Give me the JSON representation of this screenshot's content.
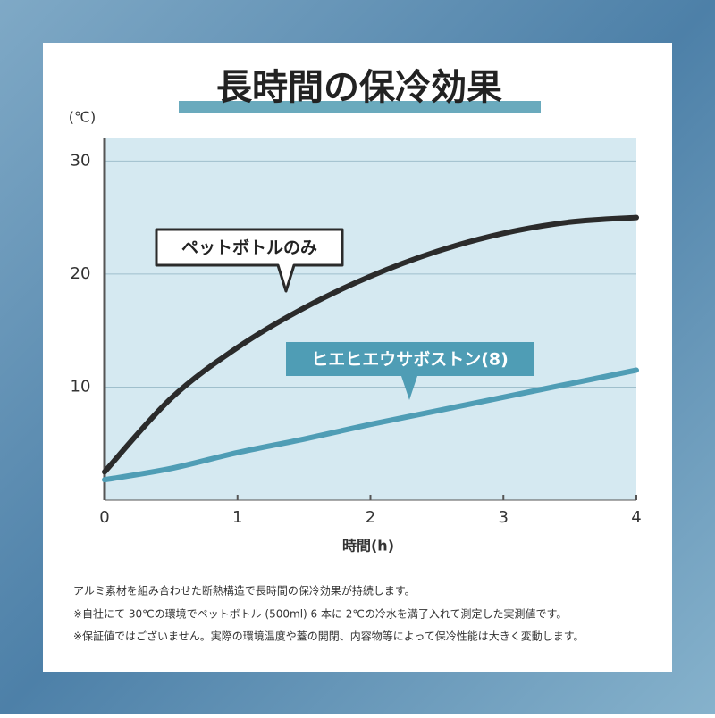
{
  "chart_data": {
    "type": "line",
    "title": "長時間の保冷効果",
    "y_label": "(℃)",
    "x_label": "時間(h)",
    "x": [
      0,
      0.5,
      1,
      1.5,
      2,
      2.5,
      3,
      3.5,
      4
    ],
    "series": [
      {
        "name": "ペットボトルのみ",
        "color": "#2b2b2b",
        "values": [
          2.5,
          9,
          13.5,
          17,
          19.8,
          22,
          23.6,
          24.6,
          25
        ]
      },
      {
        "name": "ヒエヒエウサボストン(8)",
        "color": "#4f9db5",
        "values": [
          1.8,
          2.8,
          4.2,
          5.4,
          6.7,
          7.9,
          9.1,
          10.3,
          11.5
        ]
      }
    ],
    "xlim": [
      0,
      4
    ],
    "xticks": [
      0,
      1,
      2,
      3,
      4
    ],
    "ylim": [
      0,
      32
    ],
    "yticks": [
      10,
      20,
      30
    ],
    "grid": true
  },
  "notes": [
    "アルミ素材を組み合わせた断熱構造で長時間の保冷効果が持続します。",
    "※自社にて 30℃の環境でペットボトル (500ml) 6 本に 2℃の冷水を満了入れて測定した実測値です。",
    "※保証値ではございません。実際の環境温度や蓋の開閉、内容物等によって保冷性能は大きく変動します。"
  ]
}
